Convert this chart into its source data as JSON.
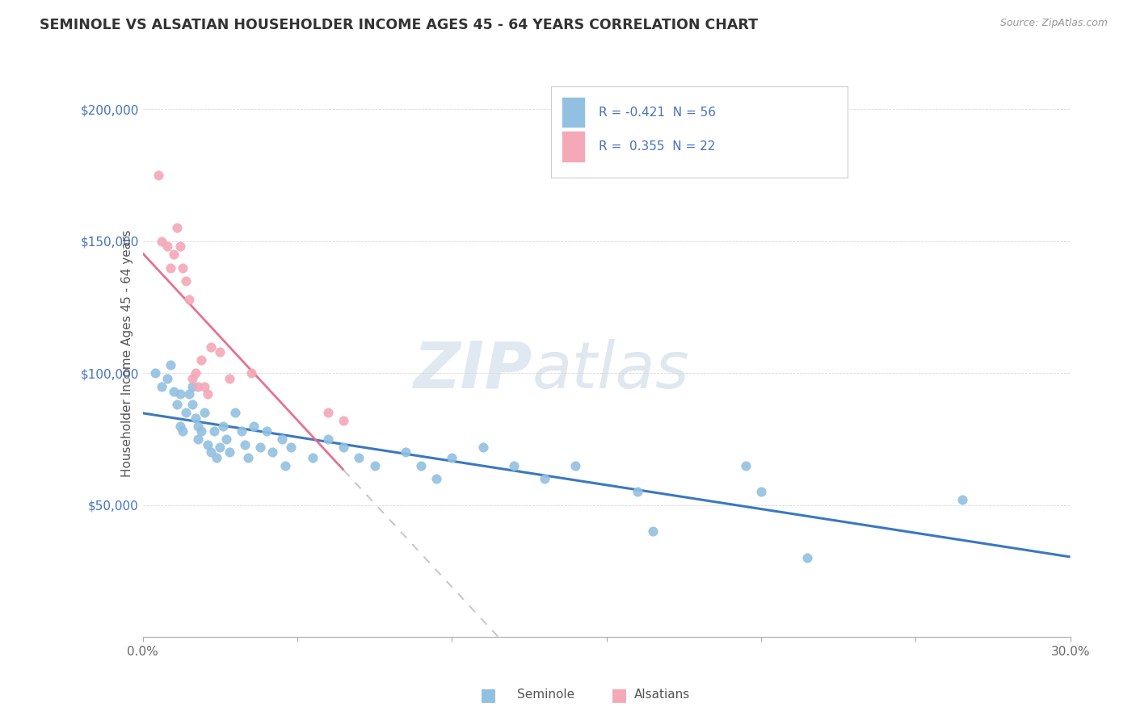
{
  "title": "SEMINOLE VS ALSATIAN HOUSEHOLDER INCOME AGES 45 - 64 YEARS CORRELATION CHART",
  "source": "Source: ZipAtlas.com",
  "ylabel": "Householder Income Ages 45 - 64 years",
  "ytick_labels": [
    "$50,000",
    "$100,000",
    "$150,000",
    "$200,000"
  ],
  "ytick_values": [
    50000,
    100000,
    150000,
    200000
  ],
  "ylim": [
    0,
    215000
  ],
  "xlim": [
    0.0,
    0.3
  ],
  "seminole_color": "#92c0e0",
  "alsatian_color": "#f4a8b8",
  "trend_seminole_color": "#3a78c0",
  "trend_alsatian_color": "#e87090",
  "dashed_color": "#c8c8c8",
  "watermark_zip": "ZIP",
  "watermark_atlas": "atlas",
  "legend_r1": "R = -0.421  N = 56",
  "legend_r2": "R =  0.355  N = 22",
  "legend_label1": "Seminole",
  "legend_label2": "Alsatians",
  "seminole_points": [
    [
      0.004,
      100000
    ],
    [
      0.006,
      95000
    ],
    [
      0.008,
      98000
    ],
    [
      0.009,
      103000
    ],
    [
      0.01,
      93000
    ],
    [
      0.011,
      88000
    ],
    [
      0.012,
      80000
    ],
    [
      0.012,
      92000
    ],
    [
      0.013,
      78000
    ],
    [
      0.014,
      85000
    ],
    [
      0.015,
      92000
    ],
    [
      0.016,
      88000
    ],
    [
      0.016,
      95000
    ],
    [
      0.017,
      83000
    ],
    [
      0.018,
      75000
    ],
    [
      0.018,
      80000
    ],
    [
      0.019,
      78000
    ],
    [
      0.02,
      85000
    ],
    [
      0.021,
      73000
    ],
    [
      0.022,
      70000
    ],
    [
      0.023,
      78000
    ],
    [
      0.024,
      68000
    ],
    [
      0.025,
      72000
    ],
    [
      0.026,
      80000
    ],
    [
      0.027,
      75000
    ],
    [
      0.028,
      70000
    ],
    [
      0.03,
      85000
    ],
    [
      0.032,
      78000
    ],
    [
      0.033,
      73000
    ],
    [
      0.034,
      68000
    ],
    [
      0.036,
      80000
    ],
    [
      0.038,
      72000
    ],
    [
      0.04,
      78000
    ],
    [
      0.042,
      70000
    ],
    [
      0.045,
      75000
    ],
    [
      0.046,
      65000
    ],
    [
      0.048,
      72000
    ],
    [
      0.055,
      68000
    ],
    [
      0.06,
      75000
    ],
    [
      0.065,
      72000
    ],
    [
      0.07,
      68000
    ],
    [
      0.075,
      65000
    ],
    [
      0.085,
      70000
    ],
    [
      0.09,
      65000
    ],
    [
      0.095,
      60000
    ],
    [
      0.1,
      68000
    ],
    [
      0.11,
      72000
    ],
    [
      0.12,
      65000
    ],
    [
      0.13,
      60000
    ],
    [
      0.14,
      65000
    ],
    [
      0.16,
      55000
    ],
    [
      0.165,
      40000
    ],
    [
      0.195,
      65000
    ],
    [
      0.2,
      55000
    ],
    [
      0.215,
      30000
    ],
    [
      0.265,
      52000
    ]
  ],
  "alsatian_points": [
    [
      0.005,
      175000
    ],
    [
      0.006,
      150000
    ],
    [
      0.008,
      148000
    ],
    [
      0.009,
      140000
    ],
    [
      0.01,
      145000
    ],
    [
      0.011,
      155000
    ],
    [
      0.012,
      148000
    ],
    [
      0.013,
      140000
    ],
    [
      0.014,
      135000
    ],
    [
      0.015,
      128000
    ],
    [
      0.016,
      98000
    ],
    [
      0.017,
      100000
    ],
    [
      0.018,
      95000
    ],
    [
      0.019,
      105000
    ],
    [
      0.02,
      95000
    ],
    [
      0.021,
      92000
    ],
    [
      0.022,
      110000
    ],
    [
      0.025,
      108000
    ],
    [
      0.028,
      98000
    ],
    [
      0.035,
      100000
    ],
    [
      0.06,
      85000
    ],
    [
      0.065,
      82000
    ]
  ]
}
